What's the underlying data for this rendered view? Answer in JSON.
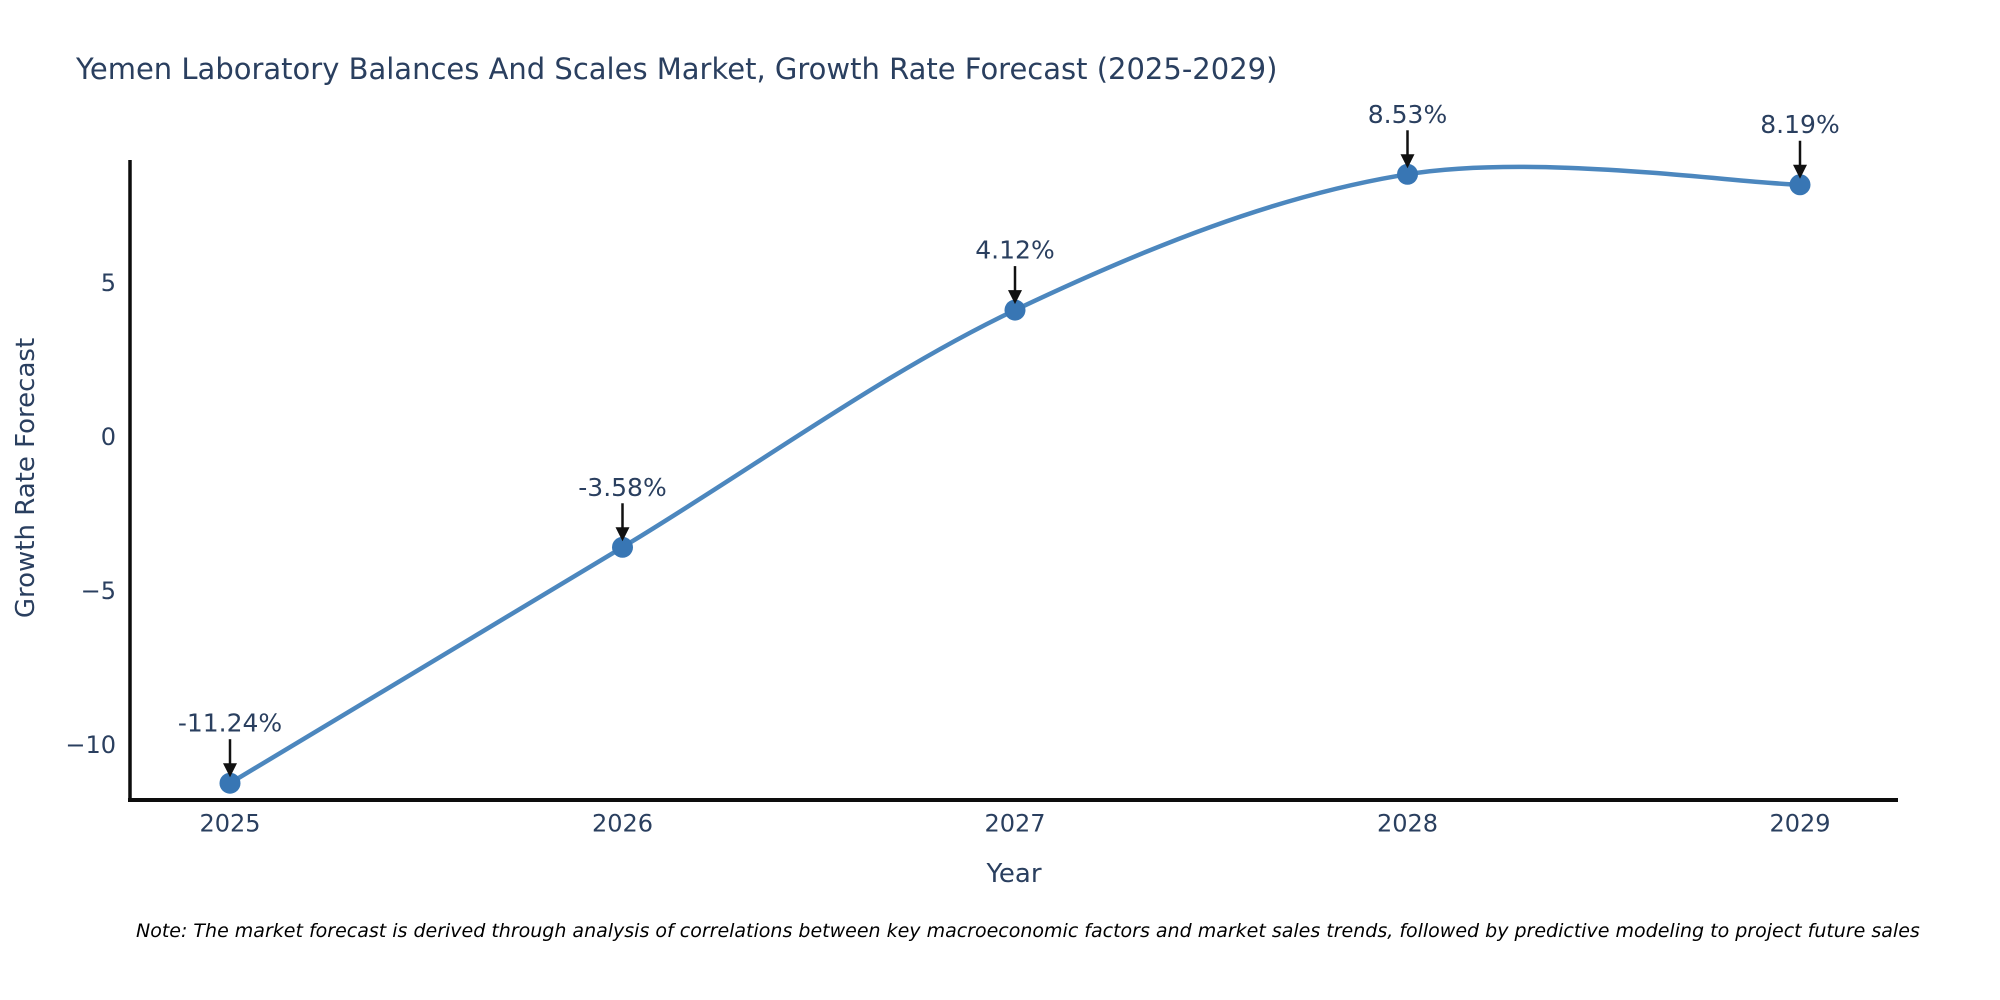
{
  "title": "Yemen Laboratory Balances And Scales Market, Growth Rate Forecast (2025-2029)",
  "note": "Note: The market forecast is derived through analysis of correlations between key macroeconomic factors and market sales trends, followed by predictive modeling to project future sales",
  "chart_data": {
    "type": "line",
    "title": "Yemen Laboratory Balances And Scales Market, Growth Rate Forecast (2025-2029)",
    "xlabel": "Year",
    "ylabel": "Growth Rate Forecast",
    "x": [
      2025,
      2026,
      2027,
      2028,
      2029
    ],
    "values": [
      -11.24,
      -3.58,
      4.12,
      8.53,
      8.19
    ],
    "point_labels": [
      "-11.24%",
      "-3.58%",
      "4.12%",
      "8.53%",
      "8.19%"
    ],
    "xtick_labels": [
      "2025",
      "2026",
      "2027",
      "2028",
      "2029"
    ],
    "ytick_values": [
      5,
      0,
      -5,
      -10
    ],
    "ytick_labels": [
      "5",
      "0",
      "−5",
      "−10"
    ],
    "ylim": [
      -11.8,
      9.0
    ],
    "line_shape": "spline",
    "grid": false,
    "legend": "none",
    "colors": {
      "line": "#4c87be",
      "marker": "#3876b4",
      "axis": "#0d0d0d",
      "text": "#2a3f5f",
      "annotation_arrow": "#111111",
      "background": "#ffffff"
    }
  }
}
